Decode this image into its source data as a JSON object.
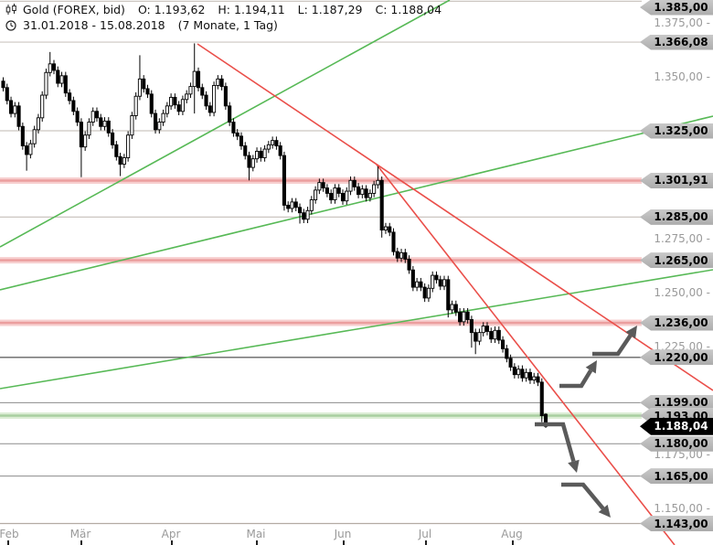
{
  "header": {
    "symbol": "Gold (FOREX, bid)",
    "open": "O: 1.193,62",
    "high": "H: 1.194,11",
    "low": "L: 1.187,29",
    "close": "C: 1.188,04",
    "range": "31.01.2018 - 15.08.2018",
    "period": "(7 Monate, 1 Tag)"
  },
  "colors": {
    "up_candle": "#ffffff",
    "down_candle": "#000000",
    "candle_border": "#000000",
    "green_line": "#57b956",
    "red_line": "#ea4f4a",
    "zone_red_core": "#eb9e9e",
    "zone_red_halo": "#f7cfcf",
    "zone_green_core": "#a8cfa0",
    "zone_green_halo": "#dcedd5",
    "level_light": "#ccc6c0",
    "level_dark": "#8c8c8c",
    "level_strong": "#666666",
    "arrow": "#5a5a5a",
    "axis_line": "#b3aba3",
    "axis_text": "#9a9a9a"
  },
  "chart_data": {
    "type": "candlestick",
    "title": "Gold (FOREX, bid)",
    "date_range": "31.01.2018 - 15.08.2018",
    "period": "7 Monate, 1 Tag",
    "y_map": {
      "p1": 1.375,
      "y1": 25,
      "p2": 1.15,
      "y2": 556
    },
    "plot_right": 702,
    "x0": 3.5,
    "dx": 4.27,
    "y_ticks": [
      {
        "label": "1.375,00",
        "price": 1.375
      },
      {
        "label": "1.350,00",
        "price": 1.35
      },
      {
        "label": "1.275,00",
        "price": 1.275
      },
      {
        "label": "1.250,00",
        "price": 1.25
      },
      {
        "label": "1.225,00",
        "price": 1.225
      },
      {
        "label": "1.175,00",
        "price": 1.175
      },
      {
        "label": "1.150,00",
        "price": 1.15
      }
    ],
    "levels": [
      {
        "label": "1.385,00",
        "price": 1.385,
        "style": "light"
      },
      {
        "label": "1.366,08",
        "price": 1.36608,
        "style": "light"
      },
      {
        "label": "1.325,00",
        "price": 1.325,
        "style": "light"
      },
      {
        "label": "1.301,91",
        "price": 1.30191,
        "style": "zone-red"
      },
      {
        "label": "1.285,00",
        "price": 1.285,
        "style": "light"
      },
      {
        "label": "1.265,00",
        "price": 1.265,
        "style": "zone-red"
      },
      {
        "label": "1.236,00",
        "price": 1.236,
        "style": "zone-red"
      },
      {
        "label": "1.220,00",
        "price": 1.22,
        "style": "strong"
      },
      {
        "label": "1.199.00",
        "price": 1.199,
        "style": "dark"
      },
      {
        "label": "1.193.00",
        "price": 1.193,
        "style": "zone-green"
      },
      {
        "label": "1.188,04",
        "price": 1.18804,
        "style": "last-price"
      },
      {
        "label": "1.180,00",
        "price": 1.18,
        "style": "dark"
      },
      {
        "label": "1.165,00",
        "price": 1.165,
        "style": "dark"
      },
      {
        "label": "1.143,00",
        "price": 1.143,
        "style": "dark"
      }
    ],
    "months": [
      {
        "label": "Feb",
        "x": 8
      },
      {
        "label": "Mär",
        "x": 88
      },
      {
        "label": "Apr",
        "x": 187
      },
      {
        "label": "Mai",
        "x": 280
      },
      {
        "label": "Jun",
        "x": 375
      },
      {
        "label": "Jul",
        "x": 465
      },
      {
        "label": "Aug",
        "x": 560
      }
    ],
    "candles": {
      "note": "open = previous close (first_open for candle 0); high/low = body extreme +/- default_wick unless overridden per index",
      "first_open": 1.348,
      "default_wick": 0.0018,
      "closes": [
        1.345,
        1.339,
        1.333,
        1.3365,
        1.327,
        1.318,
        1.314,
        1.319,
        1.3255,
        1.331,
        1.3415,
        1.352,
        1.356,
        1.353,
        1.347,
        1.3505,
        1.3425,
        1.339,
        1.334,
        1.329,
        1.3175,
        1.323,
        1.329,
        1.334,
        1.331,
        1.327,
        1.3295,
        1.324,
        1.3185,
        1.313,
        1.3095,
        1.3125,
        1.323,
        1.332,
        1.341,
        1.349,
        1.3445,
        1.342,
        1.333,
        1.3255,
        1.329,
        1.333,
        1.3365,
        1.3405,
        1.337,
        1.334,
        1.3395,
        1.342,
        1.3455,
        1.3525,
        1.345,
        1.3415,
        1.3365,
        1.3335,
        1.346,
        1.349,
        1.3455,
        1.3365,
        1.329,
        1.324,
        1.3225,
        1.318,
        1.3135,
        1.308,
        1.312,
        1.3155,
        1.3125,
        1.3165,
        1.3185,
        1.3205,
        1.318,
        1.3135,
        1.2905,
        1.289,
        1.292,
        1.2895,
        1.287,
        1.284,
        1.288,
        1.293,
        1.2975,
        1.301,
        1.2985,
        1.296,
        1.293,
        1.2985,
        1.296,
        1.2925,
        1.297,
        1.302,
        1.299,
        1.2955,
        1.298,
        1.294,
        1.296,
        1.3,
        1.302,
        1.279,
        1.2805,
        1.278,
        1.269,
        1.266,
        1.2685,
        1.2655,
        1.2605,
        1.2525,
        1.255,
        1.2525,
        1.2475,
        1.252,
        1.258,
        1.256,
        1.253,
        1.256,
        1.242,
        1.2445,
        1.241,
        1.2365,
        1.241,
        1.2375,
        1.2315,
        1.2275,
        1.2315,
        1.2345,
        1.232,
        1.2285,
        1.2325,
        1.228,
        1.224,
        1.2195,
        1.2155,
        1.212,
        1.2145,
        1.2105,
        1.213,
        1.2095,
        1.211,
        1.2085,
        1.193,
        1.18804
      ],
      "open_overrides": {
        "139": 1.19362
      },
      "high_overrides": {
        "12": 1.3615,
        "35": 1.36,
        "49": 1.3655,
        "96": 1.3085,
        "139": 1.19411
      },
      "low_overrides": {
        "6": 1.3065,
        "20": 1.3035,
        "30": 1.304,
        "49": 1.333,
        "63": 1.302,
        "72": 1.288,
        "76": 1.282,
        "97": 1.2755,
        "114": 1.2385,
        "120": 1.2245,
        "121": 1.2215,
        "138": 1.19,
        "139": 1.18729
      }
    },
    "trendlines": [
      {
        "x1": 0,
        "y1": 270,
        "x2": 492,
        "y2": 0,
        "kind": "green"
      },
      {
        "x1": 0,
        "y1": 317,
        "x2": 780,
        "y2": 127,
        "kind": "green"
      },
      {
        "x1": 0,
        "y1": 425,
        "x2": 780,
        "y2": 295,
        "kind": "green"
      },
      {
        "x1": 216,
        "y1": 48,
        "x2": 780,
        "y2": 427,
        "kind": "red"
      },
      {
        "x1": 412,
        "y1": 180,
        "x2": 738,
        "y2": 596,
        "kind": "red"
      }
    ],
    "arrows": [
      {
        "pts": [
          [
            648,
            387
          ],
          [
            676,
            387
          ]
        ],
        "tip": [
          697,
          356
        ],
        "dir": "up"
      },
      {
        "pts": [
          [
            612,
            422
          ],
          [
            636,
            422
          ]
        ],
        "tip": [
          653,
          394
        ],
        "dir": "up"
      },
      {
        "pts": [
          [
            585,
            464
          ],
          [
            616,
            464
          ]
        ],
        "tip": [
          631,
          517
        ],
        "dir": "down"
      },
      {
        "pts": [
          [
            614,
            530
          ],
          [
            638,
            530
          ]
        ],
        "tip": [
          668,
          566
        ],
        "dir": "down"
      }
    ]
  }
}
